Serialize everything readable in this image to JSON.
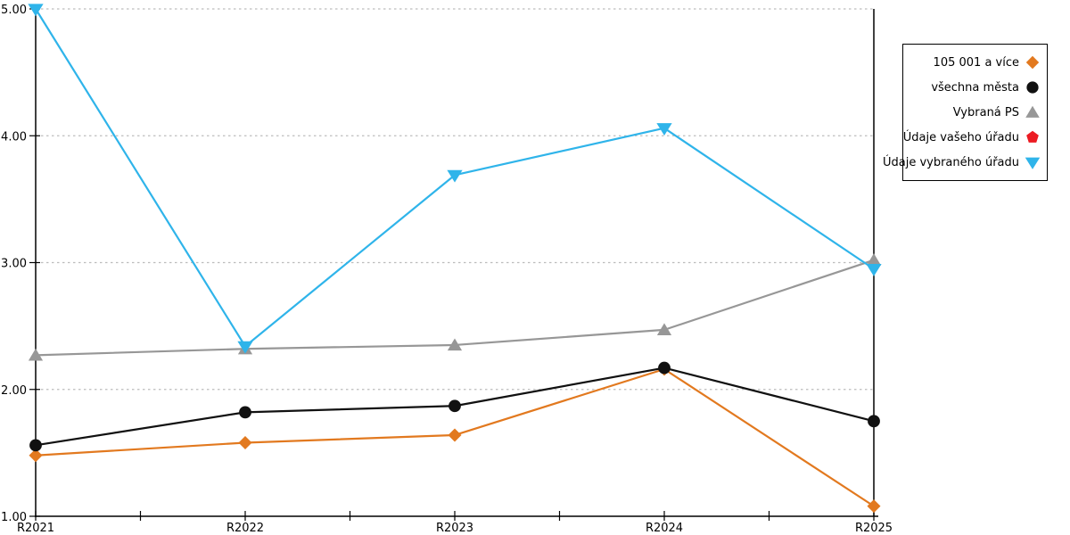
{
  "chart_data": {
    "type": "line",
    "categories": [
      "R2021",
      "R2022",
      "R2023",
      "R2024",
      "R2025"
    ],
    "series": [
      {
        "name": "105 001 a více",
        "color": "#E2791F",
        "marker": "diamond",
        "values": [
          1.48,
          1.58,
          1.64,
          2.16,
          1.08
        ]
      },
      {
        "name": "všechna města",
        "color": "#111111",
        "marker": "circle",
        "values": [
          1.56,
          1.82,
          1.87,
          2.17,
          1.75
        ]
      },
      {
        "name": "Vybraná PS",
        "color": "#979797",
        "marker": "triangle-up",
        "values": [
          2.27,
          2.32,
          2.35,
          2.47,
          3.02
        ]
      },
      {
        "name": "Údaje vašeho úřadu",
        "color": "#EC1B23",
        "marker": "pentagon",
        "values": []
      },
      {
        "name": "Údaje vybraného úřadu",
        "color": "#2FB4EA",
        "marker": "triangle-down",
        "values": [
          5.0,
          2.34,
          3.69,
          4.06,
          2.95
        ]
      }
    ],
    "y_ticks": [
      "1.00",
      "2.00",
      "3.00",
      "4.00",
      "5.00"
    ],
    "ylim": [
      1,
      5
    ],
    "grid": "dashed-horizontal",
    "legend_position": "right",
    "title": "",
    "xlabel": "",
    "ylabel": ""
  },
  "colors": {
    "axis": "#000000",
    "gridline": "#bcbcbc",
    "background": "#ffffff"
  }
}
